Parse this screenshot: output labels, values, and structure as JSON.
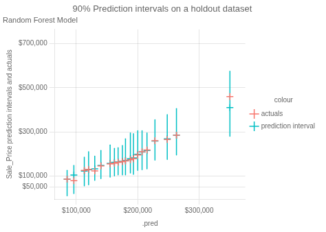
{
  "chart_data": {
    "type": "scatter",
    "title": "90% Prediction intervals on a holdout dataset",
    "subtitle": "Random Forest Model",
    "xlabel": ".pred",
    "ylabel": "Sale_Price prediction intervals and actuals",
    "legend_title": "colour",
    "legend": "right",
    "grid": true,
    "x": [
      85000,
      96000,
      113000,
      120000,
      130000,
      140000,
      155000,
      162000,
      168000,
      175000,
      180000,
      188000,
      193000,
      200000,
      207000,
      215000,
      228000,
      248000,
      263000,
      350000
    ],
    "series": [
      {
        "name": "actuals",
        "color": "#F8766D",
        "marker": "cross",
        "values": [
          85000,
          78000,
          125000,
          130000,
          123000,
          145000,
          155000,
          158000,
          162000,
          165000,
          168000,
          173000,
          178000,
          195000,
          210000,
          218000,
          260000,
          265000,
          285000,
          460000
        ]
      },
      {
        "name": "prediction interval",
        "color": "#00BFC4",
        "marker": "cross",
        "values": [
          85000,
          104000,
          122000,
          128000,
          132000,
          148000,
          157000,
          162000,
          163000,
          166000,
          170000,
          178000,
          182000,
          198000,
          208000,
          215000,
          258000,
          268000,
          285000,
          410000
        ],
        "lower": [
          10000,
          20000,
          55000,
          60000,
          80000,
          88000,
          95000,
          100000,
          105000,
          105000,
          105000,
          113000,
          107000,
          125000,
          128000,
          132000,
          172000,
          175000,
          195000,
          280000
        ],
        "upper": [
          125000,
          148000,
          185000,
          210000,
          190000,
          215000,
          240000,
          225000,
          228000,
          238000,
          268000,
          295000,
          292000,
          305000,
          305000,
          295000,
          355000,
          378000,
          405000,
          575000
        ]
      }
    ],
    "xlim": [
      65000,
      375000
    ],
    "ylim": [
      -5000,
      765000
    ],
    "xticks": [
      {
        "value": 100000,
        "label": "$100,000"
      },
      {
        "value": 200000,
        "label": "$200,000"
      },
      {
        "value": 300000,
        "label": "$300,000"
      }
    ],
    "yticks": [
      {
        "value": 50000,
        "label": "$50,000"
      },
      {
        "value": 100000,
        "label": "$100,000"
      },
      {
        "value": 300000,
        "label": "$300,000"
      },
      {
        "value": 500000,
        "label": "$500,000"
      },
      {
        "value": 700000,
        "label": "$700,000"
      }
    ]
  }
}
